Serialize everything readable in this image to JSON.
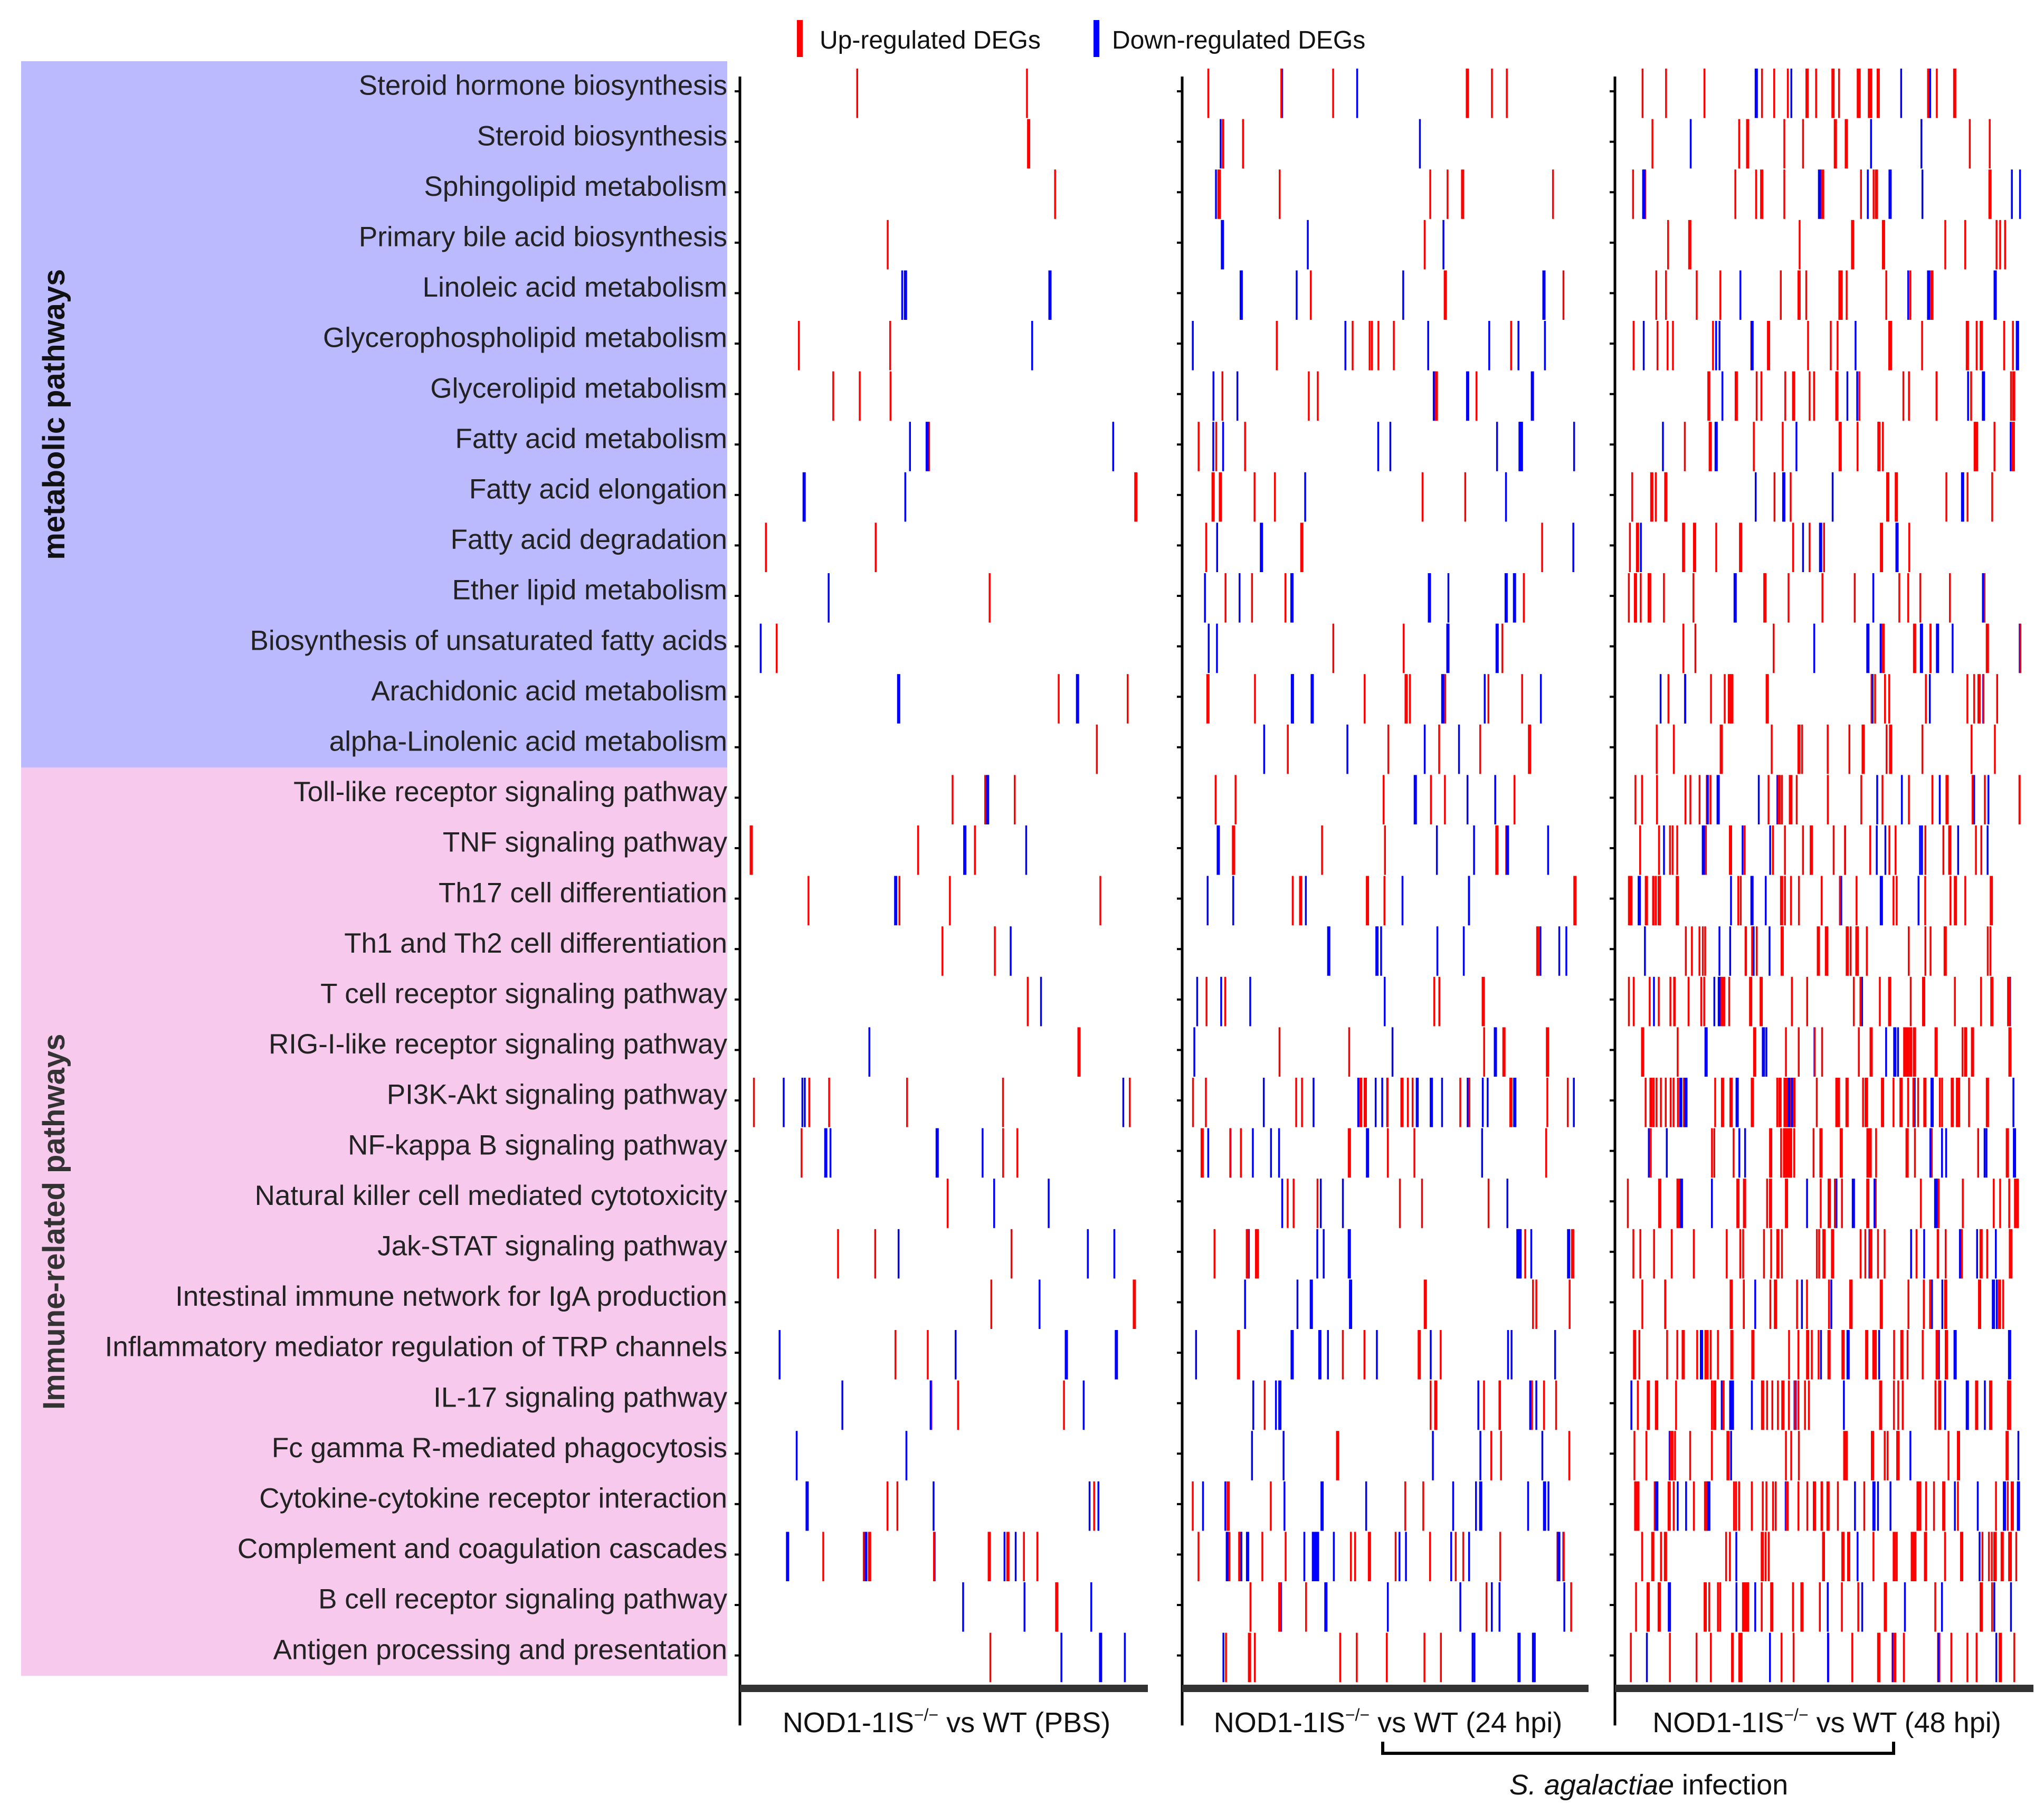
{
  "chart_data": {
    "type": "heatmap",
    "title": "",
    "legend": {
      "placement": "top",
      "entries": [
        {
          "label": "Up-regulated DEGs",
          "color": "#ff0000"
        },
        {
          "label": "Down-regulated DEGs",
          "color": "#0000ff"
        }
      ]
    },
    "groups": [
      {
        "name": "metabolic pathways",
        "color": "#bbbaff",
        "rows": [
          0,
          13
        ]
      },
      {
        "name": "Immune-related pathways",
        "color": "#f7caed",
        "rows": [
          14,
          31
        ]
      }
    ],
    "pathways": [
      "Steroid hormone biosynthesis",
      "Steroid biosynthesis",
      "Sphingolipid metabolism",
      "Primary bile acid biosynthesis",
      "Linoleic acid metabolism",
      "Glycerophospholipid metabolism",
      "Glycerolipid metabolism",
      "Fatty acid metabolism",
      "Fatty acid elongation",
      "Fatty acid degradation",
      "Ether lipid metabolism",
      "Biosynthesis of unsaturated fatty acids",
      "Arachidonic acid metabolism",
      "alpha-Linolenic acid metabolism",
      "Toll-like receptor signaling pathway",
      "TNF signaling pathway",
      "Th17 cell differentiation",
      "Th1 and Th2 cell differentiation",
      "T cell receptor signaling pathway",
      "RIG-I-like receptor signaling pathway",
      "PI3K-Akt signaling pathway",
      "NF-kappa B signaling pathway",
      "Natural killer cell mediated cytotoxicity",
      "Jak-STAT signaling pathway",
      "Intestinal immune network for IgA production",
      "Inflammatory mediator regulation of TRP channels",
      "IL-17 signaling pathway",
      "Fc gamma R-mediated phagocytosis",
      "Cytokine-cytokine receptor interaction",
      "Complement and coagulation cascades",
      "B cell receptor signaling pathway",
      "Antigen processing and presentation"
    ],
    "panels": [
      {
        "label_main": "NOD1-1IS",
        "label_sup": "−/−",
        "label_tail": " vs WT (PBS)",
        "seed": 11,
        "density": [
          2,
          1,
          1,
          1,
          3,
          3,
          3,
          4,
          3,
          2,
          2,
          2,
          4,
          1,
          5,
          5,
          5,
          3,
          2,
          2,
          10,
          7,
          3,
          6,
          3,
          6,
          6,
          2,
          7,
          14,
          4,
          4
        ],
        "up_frac": 0.45
      },
      {
        "label_main": "NOD1-1IS",
        "label_sup": "−/−",
        "label_tail": " vs WT (24 hpi)",
        "seed": 23,
        "density": [
          9,
          5,
          8,
          4,
          8,
          13,
          10,
          11,
          8,
          6,
          11,
          7,
          14,
          9,
          9,
          11,
          11,
          9,
          9,
          8,
          30,
          14,
          10,
          14,
          8,
          14,
          15,
          9,
          16,
          32,
          12,
          14
        ],
        "up_frac": 0.52
      },
      {
        "label_main": "NOD1-1IS",
        "label_sup": "−/−",
        "label_tail": " vs WT (48 hpi)",
        "seed": 37,
        "density": [
          22,
          12,
          20,
          10,
          18,
          26,
          24,
          18,
          16,
          16,
          20,
          16,
          22,
          14,
          34,
          34,
          32,
          30,
          32,
          26,
          56,
          36,
          32,
          38,
          28,
          38,
          40,
          26,
          50,
          34,
          30,
          30
        ],
        "up_frac": 0.78
      }
    ],
    "annotation": {
      "italic": "S. agalactiae",
      "text": " infection"
    }
  }
}
